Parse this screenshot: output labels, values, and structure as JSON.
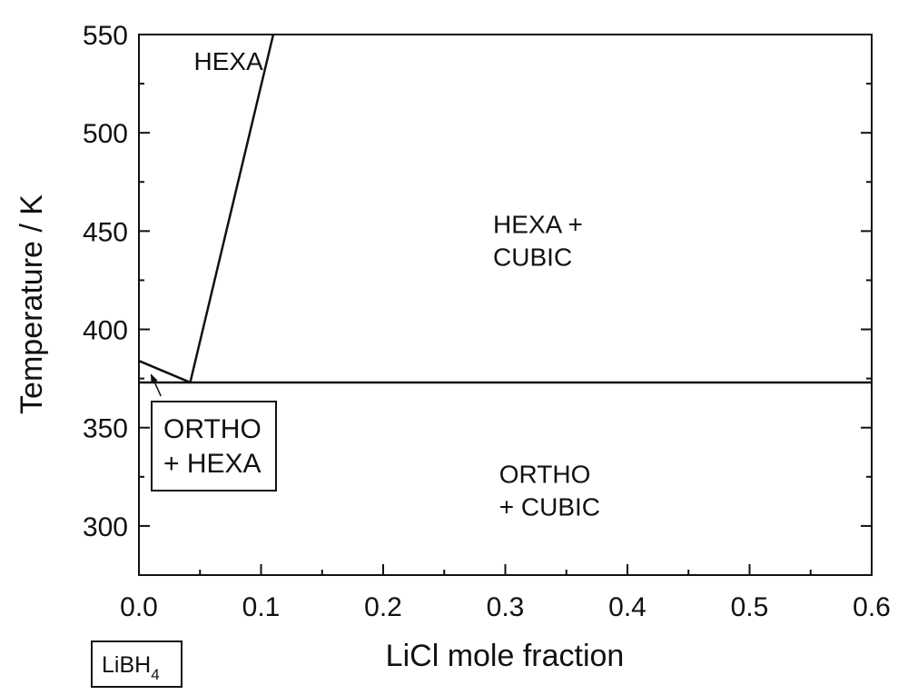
{
  "chart_data": {
    "type": "line",
    "xlabel": "LiCl mole fraction",
    "ylabel": "Temperature / K",
    "xlim": [
      0,
      0.6
    ],
    "ylim": [
      275,
      550
    ],
    "x_ticks": [
      0.0,
      0.1,
      0.2,
      0.3,
      0.4,
      0.5,
      0.6
    ],
    "x_tick_labels": [
      "0.0",
      "0.1",
      "0.2",
      "0.3",
      "0.4",
      "0.5",
      "0.6"
    ],
    "y_ticks": [
      300,
      350,
      400,
      450,
      500,
      550
    ],
    "y_tick_labels": [
      "300",
      "350",
      "400",
      "450",
      "500",
      "550"
    ],
    "grid": false,
    "series": [
      {
        "points": [
          [
            0.042,
            373
          ],
          [
            0.11,
            550
          ]
        ]
      },
      {
        "points": [
          [
            0.0,
            373
          ],
          [
            0.6,
            373
          ]
        ]
      },
      {
        "points": [
          [
            0.0,
            384
          ],
          [
            0.042,
            373
          ]
        ]
      }
    ],
    "region_labels": [
      {
        "lines": [
          "HEXA"
        ],
        "x": 0.045,
        "y": 532
      },
      {
        "lines": [
          "HEXA +",
          "CUBIC"
        ],
        "x": 0.29,
        "y": 449
      },
      {
        "lines": [
          "ORTHO",
          "+ CUBIC"
        ],
        "x": 0.295,
        "y": 322
      }
    ],
    "boxed_annotation": {
      "lines": [
        "ORTHO",
        "+ HEXA"
      ],
      "arrow_from": [
        0.018,
        366
      ],
      "arrow_to": [
        0.01,
        377
      ]
    },
    "x_origin_label": {
      "main": "LiBH",
      "subscript": "4"
    }
  }
}
